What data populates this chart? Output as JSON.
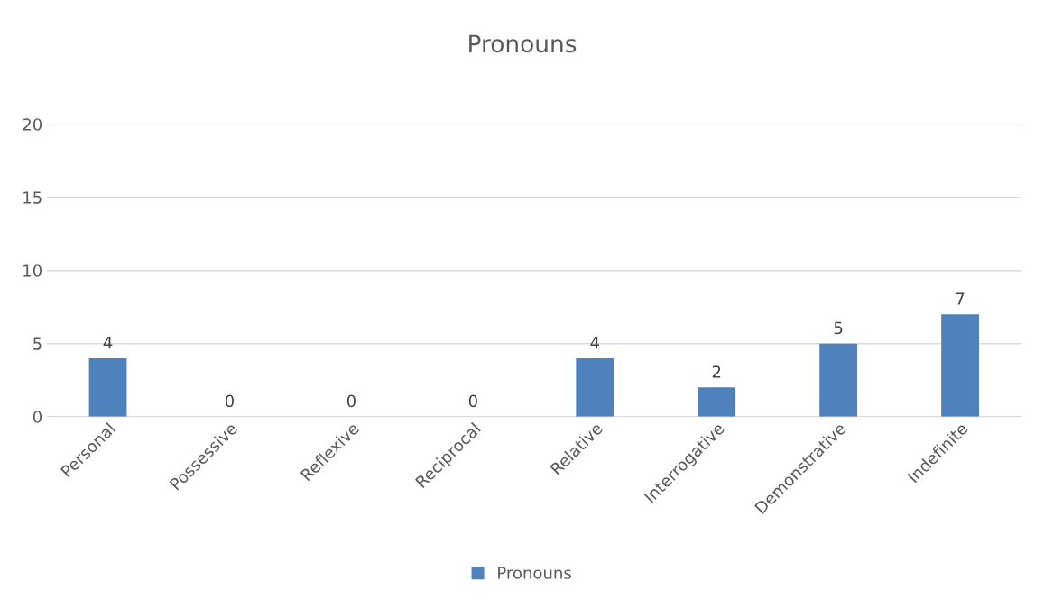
{
  "chart_data": {
    "type": "bar",
    "title": "Pronouns",
    "categories": [
      "Personal",
      "Possessive",
      "Reflexive",
      "Reciprocal",
      "Relative",
      "Interrogative",
      "Demonstrative",
      "Indefinite"
    ],
    "series": [
      {
        "name": "Pronouns",
        "color": "#4f81bd",
        "values": [
          4,
          0,
          0,
          0,
          4,
          2,
          5,
          7
        ]
      }
    ],
    "ylim": [
      0,
      20
    ],
    "yticks": [
      0,
      5,
      10,
      15,
      20
    ],
    "grid": "y",
    "legend": "bottom",
    "data_labels": true
  }
}
